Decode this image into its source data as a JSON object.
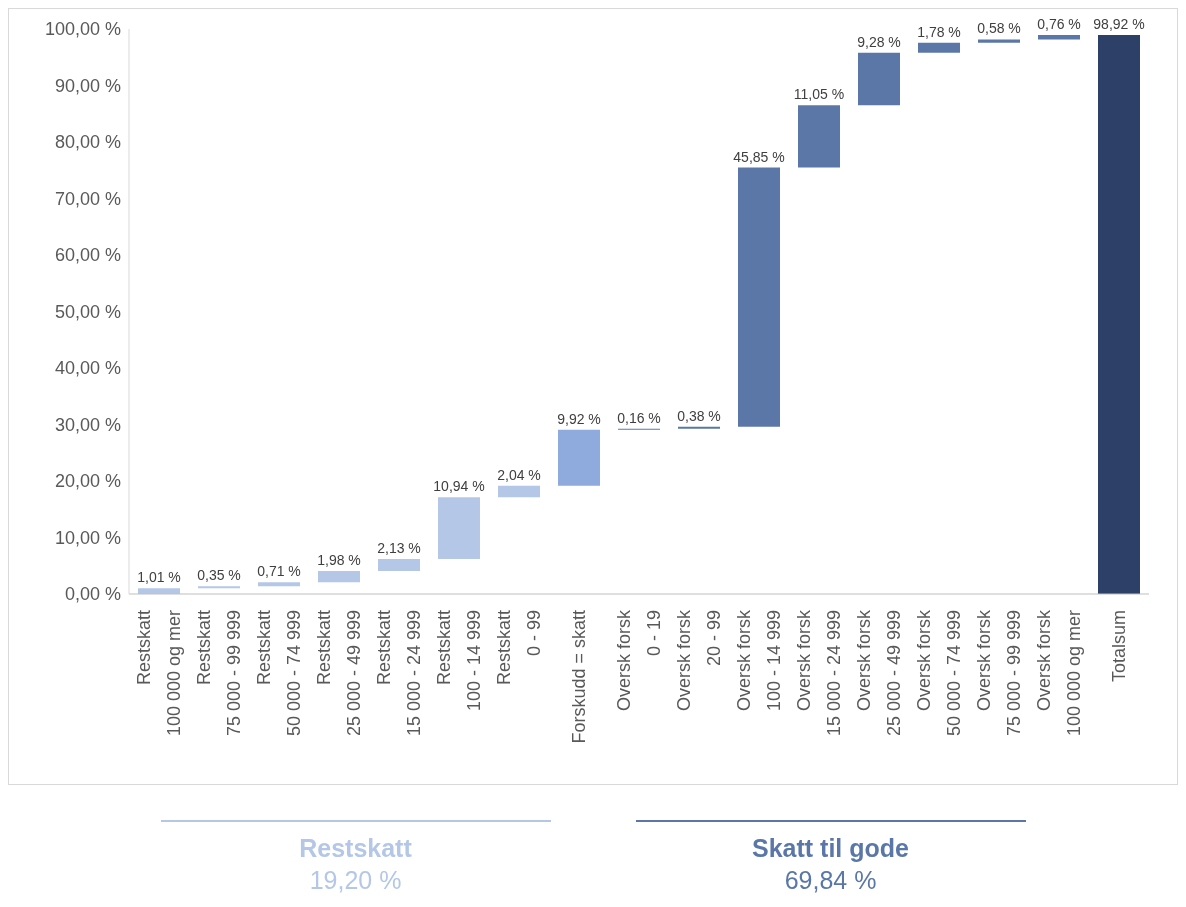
{
  "chart_data": {
    "type": "bar",
    "categories": [
      "Restskatt\n100 000 og mer",
      "Restskatt\n75 000 - 99 999",
      "Restskatt\n50 000 - 74 999",
      "Restskatt\n25 000 - 49 999",
      "Restskatt\n15 000 - 24 999",
      "Restskatt\n100 - 14 999",
      "Restskatt\n0 - 99",
      "Forskudd = skatt",
      "Oversk forsk\n0 - 19",
      "Oversk forsk\n20 - 99",
      "Oversk forsk\n100 - 14 999",
      "Oversk forsk\n15 000 - 24 999",
      "Oversk forsk\n25 000 - 49 999",
      "Oversk forsk\n50 000 - 74 999",
      "Oversk forsk\n75 000 - 99 999",
      "Oversk forsk\n100 000 og mer",
      "Totalsum"
    ],
    "values": [
      1.01,
      0.35,
      0.71,
      1.98,
      2.13,
      10.94,
      2.04,
      9.92,
      0.16,
      0.38,
      45.85,
      11.05,
      9.28,
      1.78,
      0.58,
      0.76,
      98.92
    ],
    "base": [
      0,
      1.01,
      1.36,
      2.07,
      4.05,
      6.18,
      17.12,
      19.16,
      29.08,
      29.24,
      29.62,
      75.47,
      86.52,
      95.8,
      97.58,
      98.16,
      0
    ],
    "value_labels": [
      "1,01 %",
      "0,35 %",
      "0,71 %",
      "1,98 %",
      "2,13 %",
      "10,94 %",
      "2,04 %",
      "9,92 %",
      "0,16 %",
      "0,38 %",
      "45,85 %",
      "11,05 %",
      "9,28 %",
      "1,78 %",
      "0,58 %",
      "0,76 %",
      "98,92 %"
    ],
    "colors": [
      "#b4c7e7",
      "#b4c7e7",
      "#b4c7e7",
      "#b4c7e7",
      "#b4c7e7",
      "#b4c7e7",
      "#b4c7e7",
      "#8faadc",
      "#5a77a8",
      "#5a77a8",
      "#5a77a8",
      "#5a77a8",
      "#5a77a8",
      "#5a77a8",
      "#5a77a8",
      "#5a77a8",
      "#2c4068"
    ],
    "ylim": [
      0,
      100
    ],
    "yticks": [
      {
        "value": 0,
        "label": "0,00 %"
      },
      {
        "value": 10,
        "label": "10,00 %"
      },
      {
        "value": 20,
        "label": "20,00 %"
      },
      {
        "value": 30,
        "label": "30,00 %"
      },
      {
        "value": 40,
        "label": "40,00 %"
      },
      {
        "value": 50,
        "label": "50,00 %"
      },
      {
        "value": 60,
        "label": "60,00 %"
      },
      {
        "value": 70,
        "label": "70,00 %"
      },
      {
        "value": 80,
        "label": "80,00 %"
      },
      {
        "value": 90,
        "label": "90,00 %"
      },
      {
        "value": 100,
        "label": "100,00 %"
      }
    ],
    "grid": false,
    "annotations": [
      "Restskatt",
      "19,20 %",
      "Skatt til gode",
      "69,84 %"
    ]
  }
}
